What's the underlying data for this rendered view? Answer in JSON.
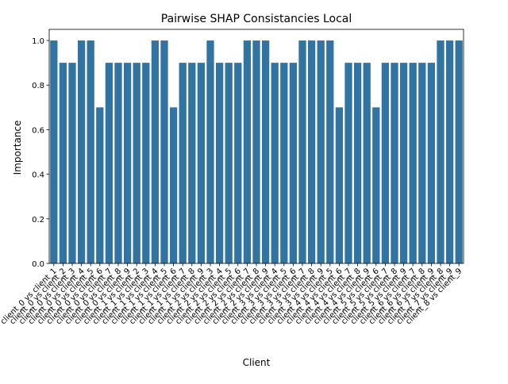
{
  "chart_data": {
    "type": "bar",
    "title": "Pairwise SHAP Consistancies Local",
    "xlabel": "Client",
    "ylabel": "Importance",
    "ylim": [
      0,
      1.05
    ],
    "yticks": [
      "0.0",
      "0.2",
      "0.4",
      "0.6",
      "0.8",
      "1.0"
    ],
    "grid": false,
    "legend": "none",
    "bar_color": "#3274a1",
    "categories": [
      "client_0 vs client_1",
      "client_0 vs client_2",
      "client_0 vs client_3",
      "client_0 vs client_4",
      "client_0 vs client_5",
      "client_0 vs client_6",
      "client_0 vs client_7",
      "client_0 vs client_8",
      "client_0 vs client_9",
      "client_1 vs client_2",
      "client_1 vs client_3",
      "client_1 vs client_4",
      "client_1 vs client_5",
      "client_1 vs client_6",
      "client_1 vs client_7",
      "client_1 vs client_8",
      "client_1 vs client_9",
      "client_2 vs client_3",
      "client_2 vs client_4",
      "client_2 vs client_5",
      "client_2 vs client_6",
      "client_2 vs client_7",
      "client_2 vs client_8",
      "client_2 vs client_9",
      "client_3 vs client_4",
      "client_3 vs client_5",
      "client_3 vs client_6",
      "client_3 vs client_7",
      "client_3 vs client_8",
      "client_3 vs client_9",
      "client_4 vs client_5",
      "client_4 vs client_6",
      "client_4 vs client_7",
      "client_4 vs client_8",
      "client_4 vs client_9",
      "client_5 vs client_6",
      "client_5 vs client_7",
      "client_5 vs client_8",
      "client_5 vs client_9",
      "client_6 vs client_7",
      "client_6 vs client_8",
      "client_6 vs client_9",
      "client_7 vs client_8",
      "client_7 vs client_9",
      "client_8 vs client_9"
    ],
    "values": [
      1.0,
      0.9,
      0.9,
      1.0,
      1.0,
      0.7,
      0.9,
      0.9,
      0.9,
      0.9,
      0.9,
      1.0,
      1.0,
      0.7,
      0.9,
      0.9,
      0.9,
      1.0,
      0.9,
      0.9,
      0.9,
      1.0,
      1.0,
      1.0,
      0.9,
      0.9,
      0.9,
      1.0,
      1.0,
      1.0,
      1.0,
      0.7,
      0.9,
      0.9,
      0.9,
      0.7,
      0.9,
      0.9,
      0.9,
      0.9,
      0.9,
      0.9,
      1.0,
      1.0,
      1.0
    ]
  }
}
